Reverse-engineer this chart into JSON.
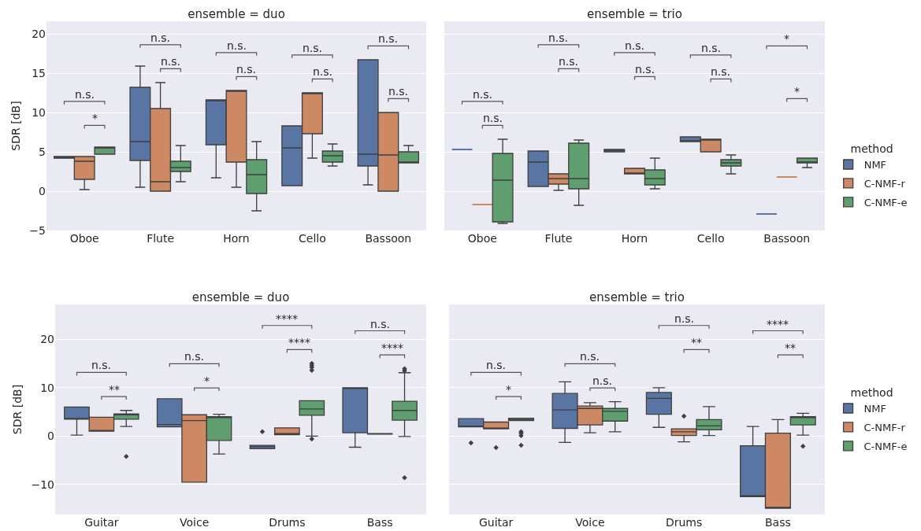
{
  "chart_data": [
    {
      "type": "box",
      "title": "ensemble = duo",
      "ylabel": "SDR [dB]",
      "categories": [
        "Oboe",
        "Flute",
        "Horn",
        "Cello",
        "Bassoon"
      ],
      "ylim": [
        -5,
        21.6
      ],
      "yticks": [
        -5,
        0,
        5,
        10,
        15,
        20
      ],
      "grid": "y",
      "series": [
        {
          "color": "#5975a4",
          "boxes": [
            {
              "low": 4.2,
              "q1": 4.2,
              "median": 4.3,
              "q3": 4.4,
              "high": 4.4
            },
            {
              "low": 0.5,
              "q1": 3.9,
              "median": 6.3,
              "q3": 13.2,
              "high": 15.9
            },
            {
              "low": 1.7,
              "q1": 5.9,
              "median": 11.6,
              "q3": 11.6,
              "high": 11.6
            },
            {
              "low": 0.7,
              "q1": 0.7,
              "median": 5.5,
              "q3": 8.3,
              "high": 8.3
            },
            {
              "low": 0.8,
              "q1": 3.2,
              "median": 4.7,
              "q3": 16.7,
              "high": 16.7
            }
          ]
        },
        {
          "color": "#cc8963",
          "boxes": [
            {
              "low": 0.2,
              "q1": 1.5,
              "median": 3.8,
              "q3": 4.4,
              "high": 4.4
            },
            {
              "low": 0,
              "q1": 0,
              "median": 1.2,
              "q3": 10.5,
              "high": 13.8
            },
            {
              "low": 0.5,
              "q1": 3.7,
              "median": 12.8,
              "q3": 12.8,
              "high": 12.8
            },
            {
              "low": 4.2,
              "q1": 7.3,
              "median": 12.5,
              "q3": 12.5,
              "high": 12.5
            },
            {
              "low": 0,
              "q1": 0,
              "median": 4.6,
              "q3": 10,
              "high": 10
            }
          ]
        },
        {
          "color": "#5f9e6e",
          "boxes": [
            {
              "low": 4.7,
              "q1": 4.7,
              "median": 5.5,
              "q3": 5.6,
              "high": 5.6
            },
            {
              "low": 1.2,
              "q1": 2.5,
              "median": 3,
              "q3": 3.8,
              "high": 5.8
            },
            {
              "low": -2.5,
              "q1": -0.3,
              "median": 2.1,
              "q3": 4,
              "high": 6.3
            },
            {
              "low": 3.2,
              "q1": 3.7,
              "median": 4.5,
              "q3": 5.1,
              "high": 6
            },
            {
              "low": 3.6,
              "q1": 3.6,
              "median": 3.6,
              "q3": 5,
              "high": 5.8
            }
          ]
        }
      ],
      "annotations": [
        "n.s.",
        "*",
        "n.s.",
        "n.s.",
        "n.s.",
        "n.s.",
        "n.s.",
        "n.s.",
        "n.s.",
        "n.s."
      ]
    },
    {
      "type": "box",
      "title": "ensemble = trio",
      "categories": [
        "Oboe",
        "Flute",
        "Horn",
        "Cello",
        "Bassoon"
      ],
      "ylim": [
        -5,
        21.6
      ],
      "yticks": [
        -5,
        0,
        5,
        10,
        15,
        20
      ],
      "grid": "y",
      "tick_labels": "x",
      "legend": "right",
      "legend_title": "method",
      "series": [
        {
          "name": "NMF",
          "color": "#5975a4",
          "boxes": [
            {
              "low": 5.3,
              "q1": 5.3,
              "median": 5.3,
              "q3": 5.3,
              "high": 5.3
            },
            {
              "low": 0.6,
              "q1": 0.6,
              "median": 3.7,
              "q3": 5.1,
              "high": 5.1
            },
            {
              "low": 5,
              "q1": 5,
              "median": 5.2,
              "q3": 5.3,
              "high": 5.3
            },
            {
              "low": 6.3,
              "q1": 6.3,
              "median": 6.3,
              "q3": 6.9,
              "high": 6.9
            },
            {
              "low": -2.9,
              "q1": -2.9,
              "median": -2.9,
              "q3": -2.9,
              "high": -2.9
            }
          ]
        },
        {
          "name": "C-NMF-r",
          "color": "#cc8963",
          "boxes": [
            {
              "low": -1.7,
              "q1": -1.7,
              "median": -1.7,
              "q3": -1.7,
              "high": -1.7
            },
            {
              "low": 0.1,
              "q1": 0.9,
              "median": 1.6,
              "q3": 2.2,
              "high": 2.2
            },
            {
              "low": 2.2,
              "q1": 2.2,
              "median": 2.2,
              "q3": 2.9,
              "high": 2.9
            },
            {
              "low": 5,
              "q1": 5,
              "median": 6.6,
              "q3": 6.6,
              "high": 6.6
            },
            {
              "low": 1.8,
              "q1": 1.8,
              "median": 1.8,
              "q3": 1.8,
              "high": 1.8
            }
          ]
        },
        {
          "name": "C-NMF-e",
          "color": "#5f9e6e",
          "boxes": [
            {
              "low": -4.1,
              "q1": -3.9,
              "median": 1.4,
              "q3": 4.8,
              "high": 6.6
            },
            {
              "low": -1.8,
              "q1": 0.3,
              "median": 1.6,
              "q3": 6.1,
              "high": 6.5
            },
            {
              "low": 0.3,
              "q1": 0.8,
              "median": 1.6,
              "q3": 2.7,
              "high": 4.2
            },
            {
              "low": 2.2,
              "q1": 3.2,
              "median": 3.6,
              "q3": 4,
              "high": 4.6
            },
            {
              "low": 3,
              "q1": 3.6,
              "median": 3.7,
              "q3": 4.2,
              "high": 4.2
            }
          ]
        }
      ],
      "annotations": [
        "n.s.",
        "n.s.",
        "n.s.",
        "n.s.",
        "n.s.",
        "n.s.",
        "n.s.",
        "n.s.",
        "*",
        "*"
      ]
    },
    {
      "type": "box",
      "title": "ensemble = duo",
      "ylabel": "SDR [dB]",
      "categories": [
        "Guitar",
        "Voice",
        "Drums",
        "Bass"
      ],
      "ylim": [
        -16.2,
        27.2
      ],
      "yticks": [
        -10,
        0,
        10,
        20
      ],
      "grid": "y",
      "series": [
        {
          "color": "#5975a4",
          "boxes": [
            {
              "low": 0.2,
              "q1": 3.5,
              "median": 3.5,
              "q3": 6,
              "high": 6
            },
            {
              "low": 1.9,
              "q1": 1.9,
              "median": 2.4,
              "q3": 7.7,
              "high": 7.7
            },
            {
              "low": -2.6,
              "q1": -2.6,
              "median": -2.2,
              "q3": -1.9,
              "high": -1.9,
              "outliers": [
                0.9
              ]
            },
            {
              "low": -2.3,
              "q1": 0.7,
              "median": 10,
              "q3": 10,
              "high": 10
            }
          ]
        },
        {
          "color": "#cc8963",
          "boxes": [
            {
              "low": 1,
              "q1": 1,
              "median": 1,
              "q3": 3.9,
              "high": 3.9
            },
            {
              "low": -9.5,
              "q1": -9.5,
              "median": 3.2,
              "q3": 4.4,
              "high": 4.4
            },
            {
              "low": 0.3,
              "q1": 0.3,
              "median": 0.5,
              "q3": 1.7,
              "high": 1.7
            },
            {
              "low": 0.4,
              "q1": 0.4,
              "median": 0.4,
              "q3": 0.5,
              "high": 0.5
            }
          ]
        },
        {
          "color": "#5f9e6e",
          "boxes": [
            {
              "low": 2,
              "q1": 3.5,
              "median": 4.4,
              "q3": 4.6,
              "high": 5.3,
              "outliers": [
                -4.2
              ]
            },
            {
              "low": -3.7,
              "q1": -0.9,
              "median": 4,
              "q3": 4,
              "high": 4.5
            },
            {
              "low": 0,
              "q1": 4.3,
              "median": 5.6,
              "q3": 7.3,
              "high": 7.3,
              "outliers": [
                -0.6,
                13.6,
                14.2,
                14.6,
                15
              ]
            },
            {
              "low": -0.1,
              "q1": 3.3,
              "median": 5.3,
              "q3": 7.2,
              "high": 13.1,
              "outliers": [
                -8.6,
                13.5,
                13.9
              ]
            }
          ]
        }
      ],
      "annotations": [
        "n.s.",
        "**",
        "n.s.",
        "*",
        "****",
        "****",
        "n.s.",
        "****"
      ]
    },
    {
      "type": "box",
      "title": "ensemble = trio",
      "categories": [
        "Guitar",
        "Voice",
        "Drums",
        "Bass"
      ],
      "ylim": [
        -16.2,
        27.2
      ],
      "yticks": [
        -10,
        0,
        10,
        20
      ],
      "grid": "y",
      "tick_labels": "x",
      "legend": "right",
      "legend_title": "method",
      "series": [
        {
          "name": "NMF",
          "color": "#5975a4",
          "boxes": [
            {
              "low": 1.9,
              "q1": 1.9,
              "median": 1.9,
              "q3": 3.6,
              "high": 3.6,
              "outliers": [
                -1.4
              ]
            },
            {
              "low": -1.3,
              "q1": 1.6,
              "median": 5.4,
              "q3": 8.8,
              "high": 11.2
            },
            {
              "low": 1.8,
              "q1": 4.5,
              "median": 7.8,
              "q3": 9,
              "high": 10
            },
            {
              "low": -12.5,
              "q1": -12.5,
              "median": -12.5,
              "q3": -2,
              "high": 2
            }
          ]
        },
        {
          "name": "C-NMF-r",
          "color": "#cc8963",
          "boxes": [
            {
              "low": 1.5,
              "q1": 1.5,
              "median": 1.5,
              "q3": 2.9,
              "high": 2.9,
              "outliers": [
                -2.4
              ]
            },
            {
              "low": 0.7,
              "q1": 2.3,
              "median": 5.7,
              "q3": 6.2,
              "high": 6.9
            },
            {
              "low": -1.2,
              "q1": 0.1,
              "median": 0.9,
              "q3": 1.5,
              "high": 1.5,
              "outliers": [
                4.1
              ]
            },
            {
              "low": -14.9,
              "q1": -14.9,
              "median": -14.9,
              "q3": 0.6,
              "high": 3.4
            }
          ]
        },
        {
          "name": "C-NMF-e",
          "color": "#5f9e6e",
          "boxes": [
            {
              "low": 3.2,
              "q1": 3.2,
              "median": 3.4,
              "q3": 3.7,
              "high": 3.7,
              "outliers": [
                -1.9,
                0.1,
                0.6,
                0.9
              ]
            },
            {
              "low": 0.9,
              "q1": 3.1,
              "median": 5.1,
              "q3": 5.7,
              "high": 7.1
            },
            {
              "low": 0.1,
              "q1": 1.3,
              "median": 2.1,
              "q3": 3.4,
              "high": 6.1
            },
            {
              "low": 0.2,
              "q1": 2.3,
              "median": 4,
              "q3": 4,
              "high": 4.7,
              "outliers": [
                -2.1
              ]
            }
          ]
        }
      ],
      "annotations": [
        "n.s.",
        "*",
        "n.s.",
        "n.s.",
        "n.s.",
        "**",
        "****",
        "**"
      ]
    }
  ]
}
